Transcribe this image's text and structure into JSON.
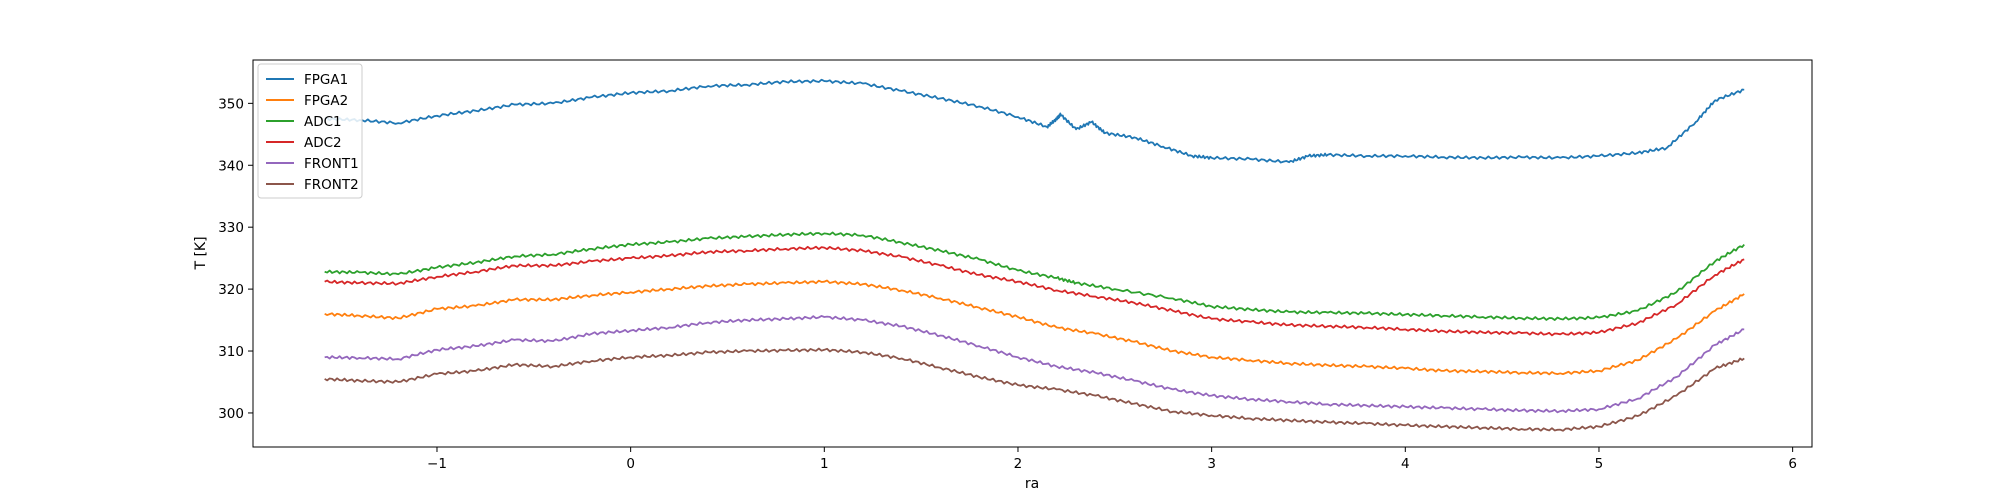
{
  "chart_data": {
    "type": "line",
    "title": "",
    "xlabel": "ra",
    "ylabel": "T [K]",
    "xlim": [
      -1.95,
      6.1
    ],
    "ylim": [
      294.5,
      357.0
    ],
    "xticks": [
      -1,
      0,
      1,
      2,
      3,
      4,
      5,
      6
    ],
    "yticks": [
      300,
      310,
      320,
      330,
      340,
      350
    ],
    "grid": false,
    "legend_position": "top-left",
    "series": [
      {
        "name": "FPGA1",
        "color": "#1f77b4",
        "x": [
          -1.58,
          -1.4,
          -1.2,
          -1.0,
          -0.8,
          -0.6,
          -0.4,
          -0.2,
          0.0,
          0.2,
          0.4,
          0.6,
          0.8,
          1.0,
          1.2,
          1.4,
          1.6,
          1.8,
          2.0,
          2.15,
          2.2,
          2.22,
          2.3,
          2.38,
          2.45,
          2.6,
          2.75,
          2.9,
          3.0,
          3.2,
          3.4,
          3.5,
          3.6,
          3.8,
          4.0,
          4.2,
          4.4,
          4.6,
          4.8,
          5.0,
          5.2,
          5.35,
          5.5,
          5.6,
          5.75
        ],
        "values": [
          347.5,
          347.3,
          346.8,
          348.0,
          348.8,
          349.8,
          350.0,
          351.0,
          351.7,
          352.0,
          352.8,
          353.0,
          353.5,
          353.6,
          353.2,
          352.0,
          350.8,
          349.5,
          347.8,
          346.2,
          347.5,
          348.2,
          345.8,
          347.0,
          345.2,
          344.5,
          343.0,
          341.5,
          341.2,
          341.0,
          340.5,
          341.5,
          341.7,
          341.5,
          341.5,
          341.3,
          341.2,
          341.3,
          341.2,
          341.5,
          342.0,
          342.8,
          347.0,
          350.5,
          352.2
        ]
      },
      {
        "name": "FPGA2",
        "color": "#ff7f0e",
        "x": [
          -1.58,
          -1.4,
          -1.2,
          -1.0,
          -0.8,
          -0.6,
          -0.4,
          -0.2,
          0.0,
          0.2,
          0.4,
          0.6,
          0.8,
          1.0,
          1.2,
          1.4,
          1.6,
          1.8,
          2.0,
          2.2,
          2.4,
          2.6,
          2.8,
          3.0,
          3.2,
          3.4,
          3.6,
          3.8,
          4.0,
          4.2,
          4.4,
          4.6,
          4.8,
          5.0,
          5.2,
          5.4,
          5.6,
          5.75
        ],
        "values": [
          316.0,
          315.7,
          315.3,
          316.8,
          317.3,
          318.3,
          318.3,
          319.0,
          319.5,
          320.0,
          320.5,
          320.8,
          321.0,
          321.2,
          320.8,
          319.8,
          318.5,
          317.0,
          315.5,
          313.8,
          312.8,
          311.5,
          310.0,
          309.0,
          308.5,
          308.0,
          307.7,
          307.5,
          307.2,
          306.8,
          306.7,
          306.5,
          306.4,
          306.8,
          308.5,
          312.0,
          316.5,
          319.2
        ]
      },
      {
        "name": "ADC1",
        "color": "#2ca02c",
        "x": [
          -1.58,
          -1.4,
          -1.2,
          -1.0,
          -0.8,
          -0.6,
          -0.4,
          -0.2,
          0.0,
          0.2,
          0.4,
          0.6,
          0.8,
          1.0,
          1.2,
          1.4,
          1.6,
          1.8,
          2.0,
          2.2,
          2.3,
          2.5,
          2.8,
          3.0,
          3.2,
          3.4,
          3.6,
          3.8,
          4.0,
          4.2,
          4.4,
          4.6,
          4.8,
          5.0,
          5.2,
          5.4,
          5.6,
          5.75
        ],
        "values": [
          322.8,
          322.7,
          322.4,
          323.5,
          324.3,
          325.3,
          325.6,
          326.5,
          327.2,
          327.6,
          328.2,
          328.5,
          328.8,
          329.0,
          328.7,
          327.5,
          326.2,
          324.8,
          323.0,
          321.8,
          321.0,
          320.0,
          318.5,
          317.2,
          316.7,
          316.3,
          316.2,
          316.1,
          315.9,
          315.7,
          315.5,
          315.3,
          315.2,
          315.4,
          316.5,
          319.5,
          324.5,
          327.2
        ]
      },
      {
        "name": "ADC2",
        "color": "#d62728",
        "x": [
          -1.58,
          -1.4,
          -1.2,
          -1.0,
          -0.8,
          -0.6,
          -0.4,
          -0.2,
          0.0,
          0.2,
          0.4,
          0.6,
          0.8,
          1.0,
          1.2,
          1.4,
          1.6,
          1.8,
          2.0,
          2.2,
          2.4,
          2.6,
          2.8,
          3.0,
          3.2,
          3.4,
          3.6,
          3.8,
          4.0,
          4.2,
          4.4,
          4.6,
          4.8,
          5.0,
          5.2,
          5.4,
          5.6,
          5.75
        ],
        "values": [
          321.2,
          321.0,
          320.9,
          322.0,
          322.8,
          323.8,
          323.8,
          324.5,
          325.0,
          325.4,
          326.0,
          326.2,
          326.5,
          326.7,
          326.2,
          325.2,
          323.8,
          322.3,
          321.2,
          319.8,
          318.8,
          317.8,
          316.5,
          315.2,
          314.7,
          314.2,
          314.0,
          313.8,
          313.5,
          313.2,
          313.0,
          312.9,
          312.7,
          313.0,
          314.5,
          317.5,
          322.3,
          324.8
        ]
      },
      {
        "name": "FRONT1",
        "color": "#9467bd",
        "x": [
          -1.58,
          -1.4,
          -1.2,
          -1.0,
          -0.8,
          -0.6,
          -0.4,
          -0.2,
          0.0,
          0.2,
          0.4,
          0.6,
          0.8,
          1.0,
          1.2,
          1.4,
          1.6,
          1.8,
          2.0,
          2.2,
          2.4,
          2.6,
          2.8,
          3.0,
          3.2,
          3.4,
          3.6,
          3.8,
          4.0,
          4.2,
          4.4,
          4.6,
          4.8,
          5.0,
          5.2,
          5.4,
          5.6,
          5.75
        ],
        "values": [
          309.0,
          308.9,
          308.7,
          310.2,
          310.8,
          311.8,
          311.6,
          312.8,
          313.3,
          313.8,
          314.6,
          315.0,
          315.2,
          315.5,
          315.0,
          314.0,
          312.5,
          310.8,
          309.0,
          307.5,
          306.5,
          305.2,
          303.8,
          302.8,
          302.2,
          301.8,
          301.4,
          301.2,
          301.0,
          300.8,
          300.6,
          300.4,
          300.3,
          300.6,
          302.3,
          305.8,
          311.0,
          313.5
        ]
      },
      {
        "name": "FRONT2",
        "color": "#8c564b",
        "x": [
          -1.58,
          -1.4,
          -1.2,
          -1.0,
          -0.8,
          -0.6,
          -0.4,
          -0.2,
          0.0,
          0.2,
          0.4,
          0.6,
          0.8,
          1.0,
          1.2,
          1.4,
          1.6,
          1.8,
          2.0,
          2.2,
          2.4,
          2.6,
          2.8,
          3.0,
          3.2,
          3.4,
          3.6,
          3.8,
          4.0,
          4.2,
          4.4,
          4.6,
          4.8,
          5.0,
          5.2,
          5.4,
          5.6,
          5.75
        ],
        "values": [
          305.5,
          305.2,
          305.0,
          306.3,
          306.8,
          307.8,
          307.5,
          308.4,
          309.0,
          309.3,
          309.8,
          310.0,
          310.1,
          310.2,
          309.8,
          308.8,
          307.3,
          305.8,
          304.5,
          303.8,
          302.8,
          301.5,
          300.2,
          299.6,
          299.1,
          298.8,
          298.5,
          298.3,
          298.0,
          297.8,
          297.6,
          297.4,
          297.3,
          297.8,
          299.5,
          302.8,
          307.2,
          308.8
        ]
      }
    ]
  }
}
